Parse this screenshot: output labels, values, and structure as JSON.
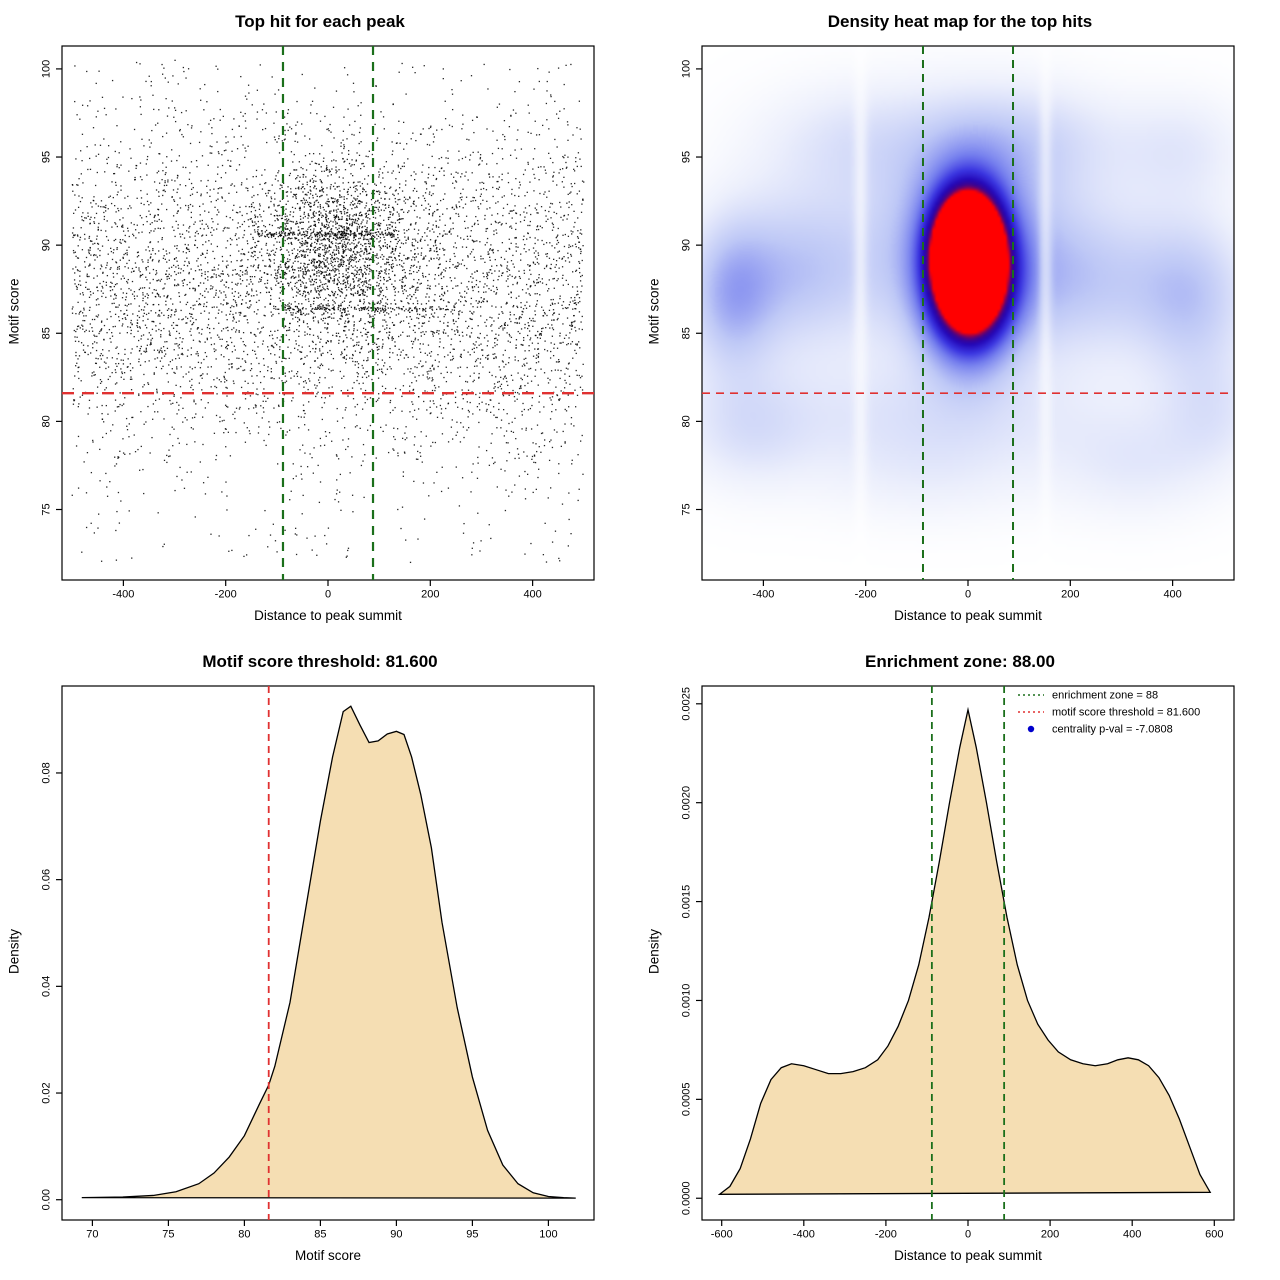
{
  "page": {
    "background": "#ffffff"
  },
  "chart_data": [
    {
      "type": "scatter",
      "title": "Top hit for each peak",
      "xlabel": "Distance to peak summit",
      "ylabel": "Motif score",
      "xlim": [
        -520,
        520
      ],
      "ylim": [
        71,
        101.3
      ],
      "xticks": {
        "values": [
          -400,
          -200,
          0,
          200,
          400
        ],
        "labels": [
          "-400",
          "-200",
          "0",
          "200",
          "400"
        ]
      },
      "yticks": {
        "values": [
          75,
          80,
          85,
          90,
          95,
          100
        ],
        "labels": [
          "75",
          "80",
          "85",
          "90",
          "95",
          "100"
        ]
      },
      "point_color": "#000000",
      "point_model": {
        "seed": 42,
        "components": [
          {
            "n": 4600,
            "x": {
              "dist": "uniform",
              "min": -500,
              "max": 500
            },
            "y": {
              "dist": "normal",
              "mean": 87.6,
              "sd": 4.6,
              "min": 71.5,
              "max": 100.6
            }
          },
          {
            "n": 1500,
            "x": {
              "dist": "normal",
              "mean": 20,
              "sd": 75,
              "min": -240,
              "max": 280
            },
            "y": {
              "dist": "normal",
              "mean": 90,
              "sd": 2.4,
              "min": 80,
              "max": 99
            }
          },
          {
            "n": 600,
            "x": {
              "dist": "uniform",
              "min": -500,
              "max": 500
            },
            "y": {
              "dist": "uniform",
              "min": 72,
              "max": 100.5
            }
          },
          {
            "n": 170,
            "x": {
              "dist": "uniform",
              "min": -140,
              "max": 130
            },
            "y": {
              "dist": "normal",
              "mean": 90.62,
              "sd": 0.07
            }
          },
          {
            "n": 130,
            "x": {
              "dist": "uniform",
              "min": -110,
              "max": 250
            },
            "y": {
              "dist": "normal",
              "mean": 86.4,
              "sd": 0.07
            }
          }
        ]
      },
      "vlines": [
        {
          "x": -88,
          "color": "#1b6f1b",
          "width": 2.2,
          "dash": [
            9,
            7
          ]
        },
        {
          "x": 88,
          "color": "#1b6f1b",
          "width": 2.2,
          "dash": [
            9,
            7
          ]
        }
      ],
      "hlines": [
        {
          "y": 81.6,
          "color": "#e03131",
          "width": 2.4,
          "dash": [
            12,
            8
          ]
        }
      ]
    },
    {
      "type": "heatmap",
      "title": "Density heat map for the top hits",
      "xlabel": "Distance to peak summit",
      "ylabel": "Motif score",
      "xlim": [
        -520,
        520
      ],
      "ylim": [
        71,
        101.3
      ],
      "xticks": {
        "values": [
          -400,
          -200,
          0,
          200,
          400
        ],
        "labels": [
          "-400",
          "-200",
          "0",
          "200",
          "400"
        ]
      },
      "yticks": {
        "values": [
          75,
          80,
          85,
          90,
          95,
          100
        ],
        "labels": [
          "75",
          "80",
          "85",
          "90",
          "95",
          "100"
        ]
      },
      "colormap": [
        {
          "t": 0.0,
          "color": "#ffffff"
        },
        {
          "t": 0.1,
          "color": "#eceffc"
        },
        {
          "t": 0.28,
          "color": "#bec8f6"
        },
        {
          "t": 0.48,
          "color": "#7680ee"
        },
        {
          "t": 0.64,
          "color": "#3a35e0"
        },
        {
          "t": 0.78,
          "color": "#2408b8"
        },
        {
          "t": 0.87,
          "color": "#3c0390"
        },
        {
          "t": 0.94,
          "color": "#8a0255"
        },
        {
          "t": 1.0,
          "color": "#ff0000"
        }
      ],
      "components": [
        {
          "x": 0,
          "y": 90,
          "sx": 42,
          "sy": 1.9,
          "amp": 1.05
        },
        {
          "x": 0,
          "y": 89,
          "sx": 62,
          "sy": 3.4,
          "amp": 0.8
        },
        {
          "x": 5,
          "y": 86.8,
          "sx": 55,
          "sy": 2.2,
          "amp": 0.5
        },
        {
          "x": 0,
          "y": 90,
          "sx": 150,
          "sy": 4.5,
          "amp": 0.32
        },
        {
          "x": -340,
          "y": 88.5,
          "sx": 110,
          "sy": 3.2,
          "amp": 0.26
        },
        {
          "x": -465,
          "y": 87,
          "sx": 60,
          "sy": 3.0,
          "amp": 0.27
        },
        {
          "x": 240,
          "y": 88,
          "sx": 130,
          "sy": 3.0,
          "amp": 0.2
        },
        {
          "x": 440,
          "y": 87,
          "sx": 80,
          "sy": 3.2,
          "amp": 0.24
        },
        {
          "x": 120,
          "y": 96,
          "sx": 130,
          "sy": 2.2,
          "amp": 0.16
        },
        {
          "x": -220,
          "y": 96,
          "sx": 140,
          "sy": 2.3,
          "amp": 0.13
        },
        {
          "x": 420,
          "y": 95.5,
          "sx": 90,
          "sy": 2.2,
          "amp": 0.12
        },
        {
          "x": -80,
          "y": 80.3,
          "sx": 260,
          "sy": 2.2,
          "amp": 0.13
        },
        {
          "x": -430,
          "y": 79.5,
          "sx": 90,
          "sy": 2.4,
          "amp": 0.13
        },
        {
          "x": 330,
          "y": 77.5,
          "sx": 110,
          "sy": 2.2,
          "amp": 0.11
        },
        {
          "x": -80,
          "y": 76.8,
          "sx": 160,
          "sy": 2.0,
          "amp": 0.08
        },
        {
          "x": 480,
          "y": 80.5,
          "sx": 70,
          "sy": 2.4,
          "amp": 0.12
        }
      ],
      "white_streaks": [
        {
          "x": -210,
          "w": 10,
          "f": 0.55
        },
        {
          "x": 152,
          "w": 9,
          "f": 0.5
        }
      ],
      "vlines": [
        {
          "x": -88,
          "color": "#1b6f1b",
          "width": 2.0,
          "dash": [
            8,
            6
          ]
        },
        {
          "x": 88,
          "color": "#1b6f1b",
          "width": 2.0,
          "dash": [
            8,
            6
          ]
        }
      ],
      "hlines": [
        {
          "y": 81.6,
          "color": "#e03131",
          "width": 1.6,
          "dash": [
            8,
            6
          ]
        }
      ]
    },
    {
      "type": "area",
      "title": "Motif score threshold: 81.600",
      "xlabel": "Motif score",
      "ylabel": "Density",
      "xlim": [
        68,
        103
      ],
      "ylim": [
        -0.0038,
        0.0963
      ],
      "xticks": {
        "values": [
          70,
          75,
          80,
          85,
          90,
          95,
          100
        ],
        "labels": [
          "70",
          "75",
          "80",
          "85",
          "90",
          "95",
          "100"
        ]
      },
      "yticks": {
        "values": [
          0,
          0.02,
          0.04,
          0.06,
          0.08
        ],
        "labels": [
          "0.00",
          "0.02",
          "0.04",
          "0.06",
          "0.08"
        ]
      },
      "fill": "#f5deb3",
      "line_color": "#000000",
      "curve": {
        "x": [
          69.3,
          72,
          74,
          75.5,
          77,
          78,
          79,
          80,
          81,
          81.6,
          82,
          83,
          84,
          85,
          85.8,
          86.5,
          87,
          87.6,
          88.2,
          88.8,
          89.4,
          90,
          90.5,
          91,
          91.6,
          92.3,
          93,
          94,
          95,
          96,
          97,
          98,
          99,
          100,
          101,
          101.8
        ],
        "y": [
          0.0004,
          0.0005,
          0.0008,
          0.0015,
          0.003,
          0.005,
          0.008,
          0.012,
          0.018,
          0.0215,
          0.025,
          0.037,
          0.054,
          0.071,
          0.083,
          0.0915,
          0.0925,
          0.089,
          0.0857,
          0.086,
          0.0873,
          0.0878,
          0.0872,
          0.083,
          0.076,
          0.066,
          0.052,
          0.036,
          0.023,
          0.013,
          0.0065,
          0.003,
          0.0013,
          0.0006,
          0.0004,
          0.0003
        ]
      },
      "vlines": [
        {
          "x": 81.6,
          "color": "#e03131",
          "width": 1.8,
          "dash": [
            7,
            5
          ]
        }
      ]
    },
    {
      "type": "area",
      "title": "Enrichment zone: 88.00",
      "xlabel": "Distance to peak summit",
      "ylabel": "Density",
      "xlim": [
        -648,
        648
      ],
      "ylim": [
        -0.00011,
        0.00259
      ],
      "xticks": {
        "values": [
          -600,
          -400,
          -200,
          0,
          200,
          400,
          600
        ],
        "labels": [
          "-600",
          "-400",
          "-200",
          "0",
          "200",
          "400",
          "600"
        ]
      },
      "yticks": {
        "values": [
          0,
          0.0005,
          0.001,
          0.0015,
          0.002,
          0.0025
        ],
        "labels": [
          "0.0000",
          "0.0005",
          "0.0010",
          "0.0015",
          "0.0020",
          "0.0025"
        ]
      },
      "fill": "#f5deb3",
      "line_color": "#000000",
      "curve": {
        "x": [
          -605,
          -580,
          -555,
          -530,
          -505,
          -480,
          -455,
          -430,
          -400,
          -370,
          -340,
          -310,
          -280,
          -250,
          -220,
          -195,
          -170,
          -145,
          -120,
          -95,
          -70,
          -45,
          -20,
          0,
          20,
          45,
          70,
          95,
          120,
          145,
          170,
          195,
          220,
          250,
          280,
          310,
          340,
          365,
          390,
          415,
          440,
          465,
          490,
          515,
          540,
          565,
          590
        ],
        "y": [
          2e-05,
          6e-05,
          0.00015,
          0.0003,
          0.00048,
          0.0006,
          0.00066,
          0.00068,
          0.00067,
          0.00065,
          0.00063,
          0.00063,
          0.00064,
          0.00066,
          0.0007,
          0.00077,
          0.00087,
          0.001,
          0.00118,
          0.00142,
          0.0017,
          0.002,
          0.00228,
          0.00247,
          0.00228,
          0.002,
          0.0017,
          0.00142,
          0.00118,
          0.001,
          0.00088,
          0.0008,
          0.00074,
          0.0007,
          0.00068,
          0.00067,
          0.00068,
          0.0007,
          0.00071,
          0.0007,
          0.00067,
          0.00061,
          0.00052,
          0.0004,
          0.00026,
          0.00012,
          3e-05
        ]
      },
      "vlines": [
        {
          "x": -88,
          "color": "#1b6f1b",
          "width": 1.8,
          "dash": [
            7,
            5
          ]
        },
        {
          "x": 88,
          "color": "#1b6f1b",
          "width": 1.8,
          "dash": [
            7,
            5
          ]
        }
      ],
      "legend": {
        "entries": [
          {
            "sample": "dotted-line",
            "color": "#1b6f1b",
            "label": "enrichment zone = 88"
          },
          {
            "sample": "dotted-line",
            "color": "#e03131",
            "label": "motif score threshold = 81.600"
          },
          {
            "sample": "point",
            "color": "#0000cc",
            "label": "centrality p-val = -7.0808"
          }
        ]
      }
    }
  ]
}
